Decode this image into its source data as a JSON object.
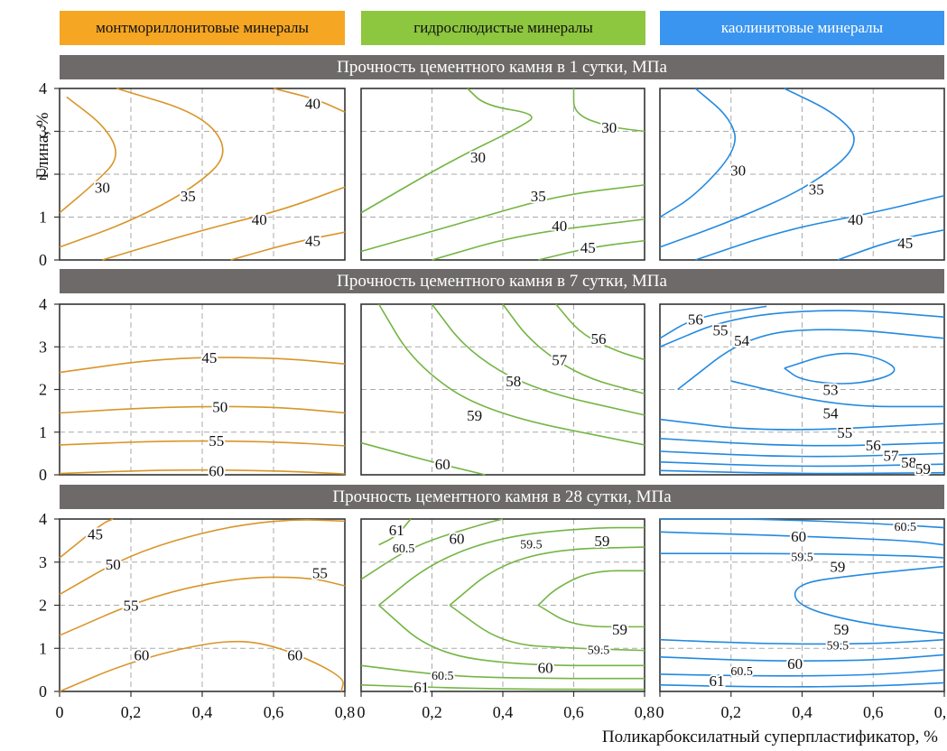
{
  "legend": [
    {
      "label": "монтмориллонитовые минералы",
      "color": "#f5a623"
    },
    {
      "label": "гидрослюдистые минералы",
      "color": "#8dc63f"
    },
    {
      "label": "каолинитовые минералы",
      "color": "#3a95f0"
    }
  ],
  "bands": [
    "Прочность цементного камня в 1 сутки, МПа",
    "Прочность цементного камня в 7 сутки, МПа",
    "Прочность цементного камня в 28 сутки, МПа"
  ],
  "axes": {
    "xlabel": "Поликарбоксилатный суперпластификатор, %",
    "ylabel": "Глина, %",
    "xlim": [
      0,
      0.8
    ],
    "ylim": [
      0,
      4
    ],
    "xticks": [
      "0",
      "0,2",
      "0,4",
      "0,6",
      "0,8"
    ],
    "yticks": [
      "0",
      "1",
      "2",
      "3",
      "4"
    ]
  },
  "line_colors": [
    "#d9952a",
    "#74b544",
    "#2389e0"
  ],
  "chart_data": {
    "type": "contour",
    "grid": true,
    "panels": [
      {
        "row": 1,
        "col": 1,
        "levels": [
          "30",
          "35",
          "40",
          "45",
          "40"
        ]
      },
      {
        "row": 1,
        "col": 2,
        "levels": [
          "30",
          "30",
          "35",
          "40",
          "45"
        ]
      },
      {
        "row": 1,
        "col": 3,
        "levels": [
          "30",
          "35",
          "40",
          "45"
        ]
      },
      {
        "row": 2,
        "col": 1,
        "levels": [
          "45",
          "50",
          "55",
          "60"
        ]
      },
      {
        "row": 2,
        "col": 2,
        "levels": [
          "56",
          "57",
          "58",
          "59",
          "60"
        ]
      },
      {
        "row": 2,
        "col": 3,
        "levels": [
          "56",
          "55",
          "54",
          "53",
          "54",
          "55",
          "56",
          "57",
          "58",
          "59"
        ]
      },
      {
        "row": 3,
        "col": 1,
        "levels": [
          "45",
          "50",
          "55",
          "55",
          "60",
          "60"
        ]
      },
      {
        "row": 3,
        "col": 2,
        "levels": [
          "61",
          "60.5",
          "60",
          "59.5",
          "59",
          "59",
          "59.5",
          "60",
          "60.5",
          "61"
        ]
      },
      {
        "row": 3,
        "col": 3,
        "levels": [
          "60",
          "60.5",
          "59.5",
          "59",
          "59",
          "59.5",
          "60",
          "60.5",
          "61"
        ]
      }
    ]
  }
}
